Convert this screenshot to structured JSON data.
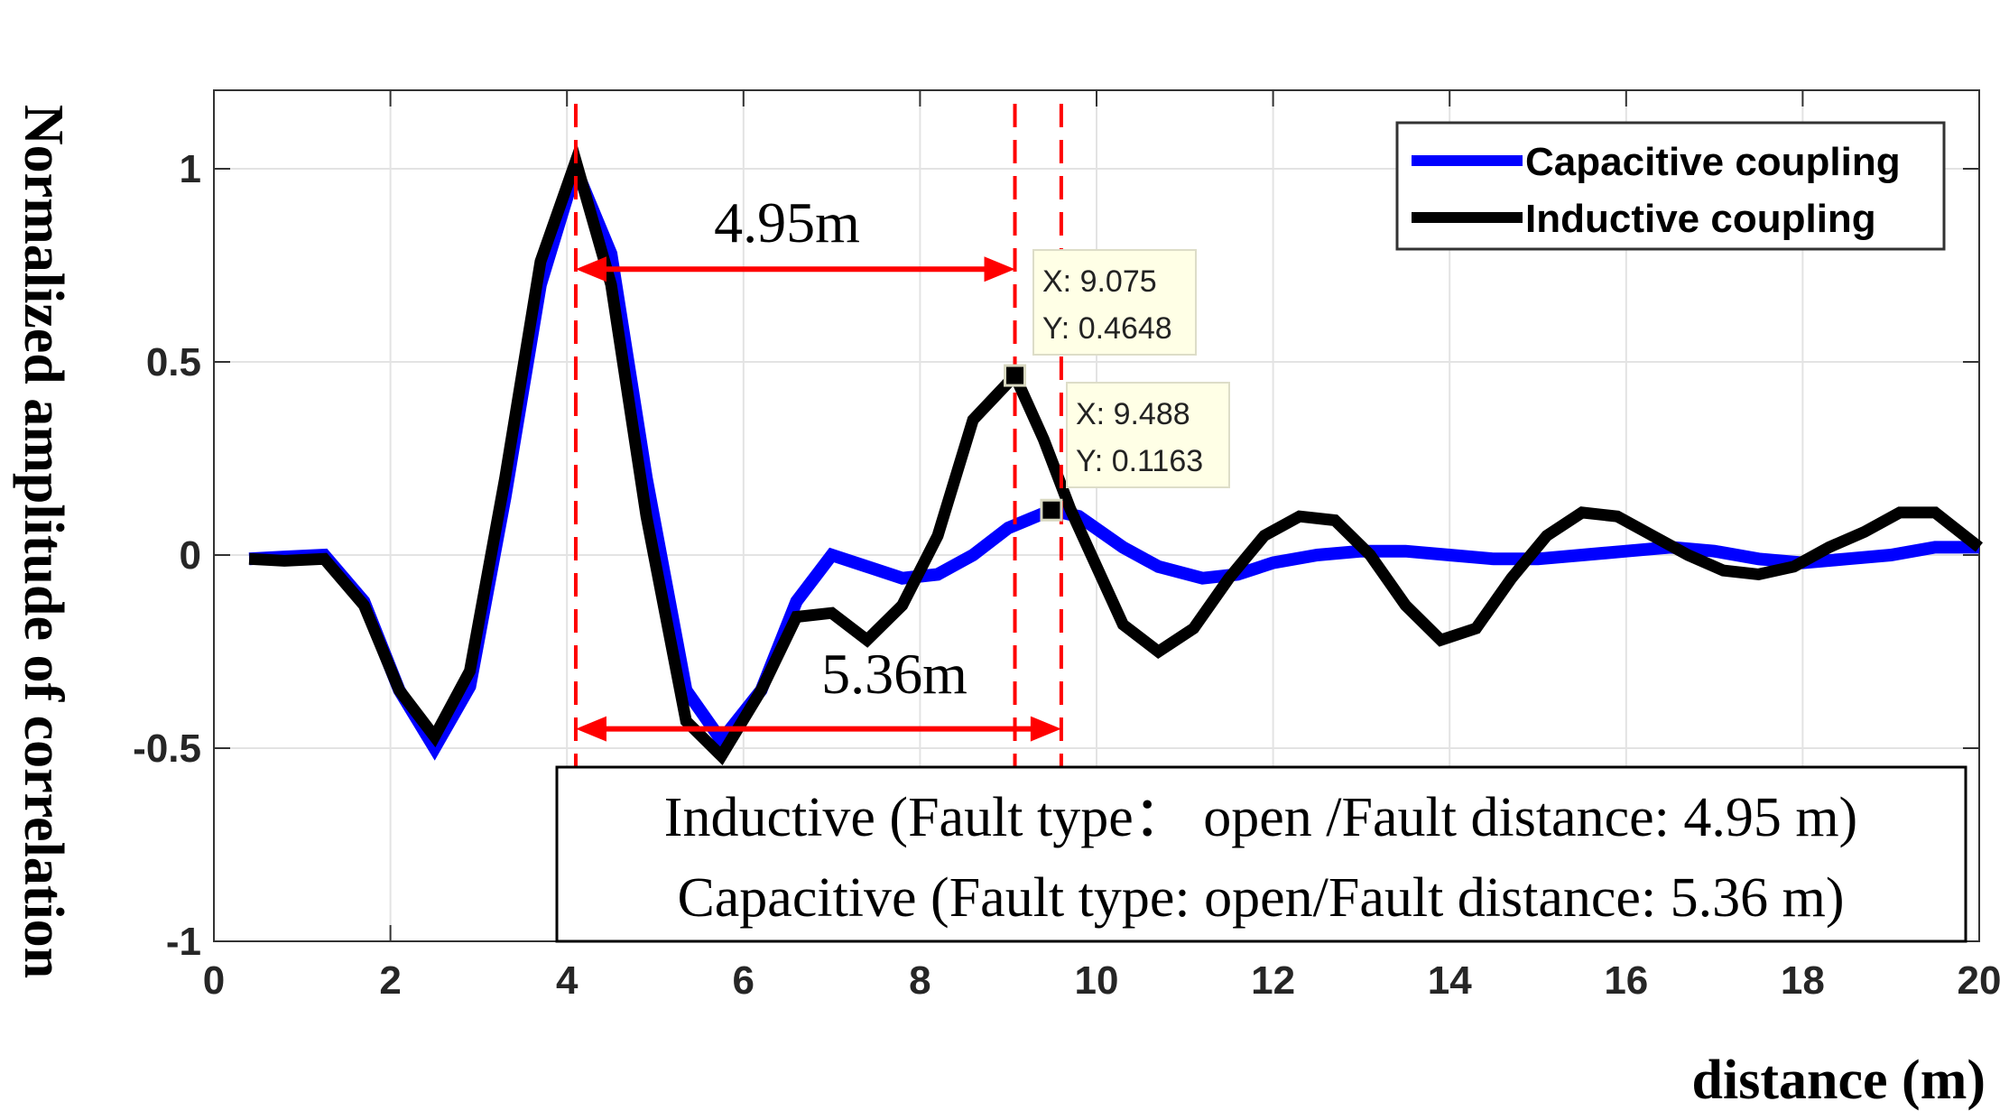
{
  "chart_data": {
    "type": "line",
    "title": "",
    "xlabel": "distance (m)",
    "ylabel": "Normalized amplitude of correlation",
    "xlim": [
      0,
      20
    ],
    "ylim": [
      -1,
      1.2
    ],
    "xticks": [
      0,
      2,
      4,
      6,
      8,
      10,
      12,
      14,
      16,
      18,
      20
    ],
    "xtick_labels": [
      "0",
      "2",
      "4",
      "6",
      "8",
      "10",
      "12",
      "14",
      "16",
      "18",
      "20"
    ],
    "yticks": [
      -1,
      -0.5,
      0,
      0.5,
      1
    ],
    "ytick_labels": [
      "-1",
      "-0.5",
      "0",
      "0.5",
      "1"
    ],
    "grid": true,
    "legend_position": "top-right",
    "series": [
      {
        "name": "Capacitive coupling",
        "color": "#0000ff",
        "x": [
          0.4,
          0.8,
          1.25,
          1.7,
          2.1,
          2.5,
          2.9,
          3.3,
          3.7,
          4.1,
          4.5,
          4.9,
          5.35,
          5.75,
          6.2,
          6.6,
          7.0,
          7.4,
          7.8,
          8.2,
          8.6,
          9.0,
          9.488,
          9.8,
          10.3,
          10.7,
          11.2,
          11.6,
          12.0,
          12.5,
          13.0,
          13.5,
          14.0,
          14.5,
          15.0,
          15.5,
          16.0,
          16.5,
          17.0,
          17.5,
          18.0,
          18.5,
          19.0,
          19.5,
          20.0
        ],
        "y": [
          -0.01,
          -0.005,
          0,
          -0.12,
          -0.35,
          -0.5,
          -0.34,
          0.15,
          0.7,
          1.0,
          0.78,
          0.2,
          -0.35,
          -0.48,
          -0.35,
          -0.12,
          0.0,
          -0.03,
          -0.06,
          -0.05,
          0.0,
          0.07,
          0.1163,
          0.1,
          0.02,
          -0.03,
          -0.06,
          -0.05,
          -0.02,
          0.0,
          0.01,
          0.01,
          0.0,
          -0.01,
          -0.01,
          0.0,
          0.01,
          0.02,
          0.01,
          -0.01,
          -0.02,
          -0.01,
          0.0,
          0.02,
          0.02
        ]
      },
      {
        "name": "Inductive coupling",
        "color": "#000000",
        "x": [
          0.4,
          0.8,
          1.25,
          1.7,
          2.1,
          2.5,
          2.9,
          3.3,
          3.7,
          4.1,
          4.5,
          4.9,
          5.35,
          5.75,
          6.2,
          6.6,
          7.0,
          7.4,
          7.8,
          8.2,
          8.6,
          9.075,
          9.4,
          9.7,
          10.3,
          10.7,
          11.1,
          11.5,
          11.9,
          12.3,
          12.7,
          13.1,
          13.5,
          13.9,
          14.3,
          14.7,
          15.1,
          15.5,
          15.9,
          16.3,
          16.7,
          17.1,
          17.5,
          17.9,
          18.3,
          18.7,
          19.1,
          19.5,
          20.0
        ],
        "y": [
          -0.01,
          -0.015,
          -0.01,
          -0.13,
          -0.35,
          -0.47,
          -0.3,
          0.2,
          0.76,
          1.02,
          0.7,
          0.1,
          -0.43,
          -0.52,
          -0.35,
          -0.16,
          -0.15,
          -0.22,
          -0.13,
          0.05,
          0.35,
          0.4648,
          0.3,
          0.12,
          -0.18,
          -0.25,
          -0.19,
          -0.06,
          0.05,
          0.1,
          0.09,
          0.0,
          -0.13,
          -0.22,
          -0.19,
          -0.06,
          0.05,
          0.11,
          0.1,
          0.05,
          0.0,
          -0.04,
          -0.05,
          -0.03,
          0.02,
          0.06,
          0.11,
          0.11,
          0.02
        ]
      }
    ],
    "vlines": [
      4.1,
      9.075,
      9.6
    ],
    "annotations": [
      {
        "text": "4.95m",
        "from": 4.1,
        "to": 9.075,
        "y": 0.74
      },
      {
        "text": "5.36m",
        "from": 4.1,
        "to": 9.6,
        "y": -0.45
      }
    ],
    "datatips": [
      {
        "x_label": "X: 9.075",
        "y_label": "Y: 0.4648",
        "x": 9.075,
        "y": 0.4648
      },
      {
        "x_label": "X: 9.488",
        "y_label": "Y: 0.1163",
        "x": 9.488,
        "y": 0.1163
      }
    ],
    "info_box": [
      "Inductive (Fault type： open /Fault distance: 4.95 m)",
      "Capacitive (Fault type: open/Fault distance: 5.36 m)"
    ]
  }
}
